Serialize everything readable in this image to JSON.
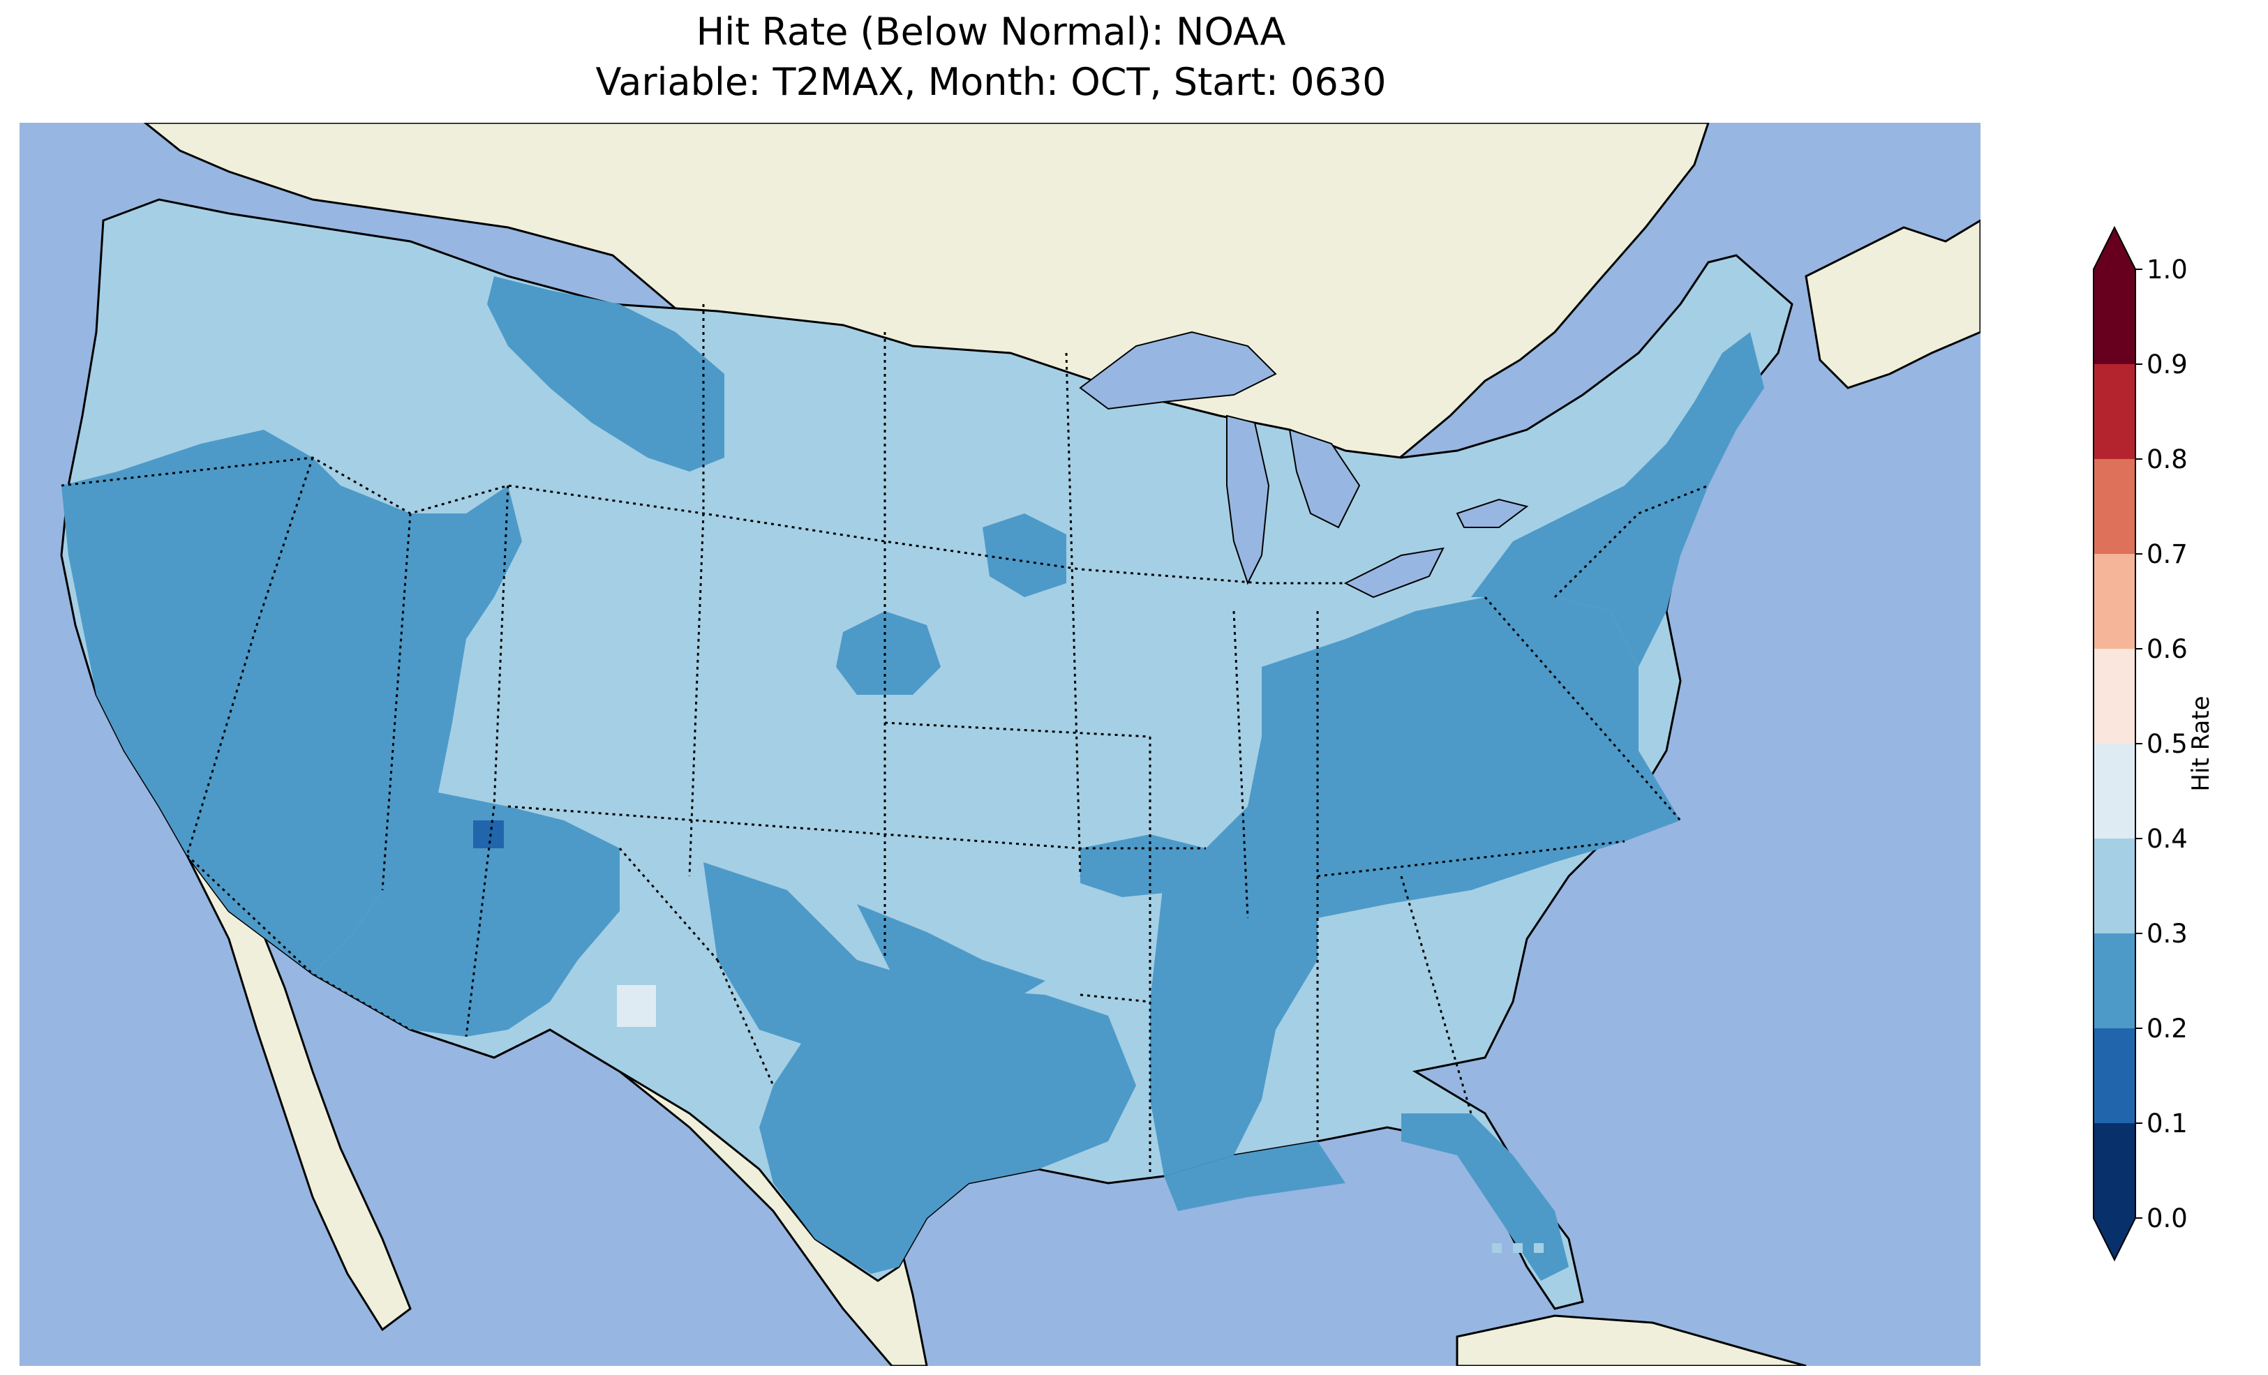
{
  "title": {
    "line1": "Hit Rate (Below Normal): NOAA",
    "line2": "Variable: T2MAX, Month: OCT, Start: 0630"
  },
  "map": {
    "region": "Contiguous United States",
    "land_color": "#efefdb",
    "water_color": "#97b6e1",
    "coastline_color": "#000000",
    "state_border_style": "dotted"
  },
  "colorbar": {
    "label": "Hit Rate",
    "ticks": [
      "0.0",
      "0.1",
      "0.2",
      "0.3",
      "0.4",
      "0.5",
      "0.6",
      "0.7",
      "0.8",
      "0.9",
      "1.0"
    ],
    "bins": [
      {
        "from": 0.0,
        "to": 0.1,
        "color": "#08306b"
      },
      {
        "from": 0.1,
        "to": 0.2,
        "color": "#2166ac"
      },
      {
        "from": 0.2,
        "to": 0.3,
        "color": "#4d9ac9"
      },
      {
        "from": 0.3,
        "to": 0.4,
        "color": "#a5cfe4"
      },
      {
        "from": 0.4,
        "to": 0.5,
        "color": "#dfebf3"
      },
      {
        "from": 0.5,
        "to": 0.6,
        "color": "#fae6dd"
      },
      {
        "from": 0.6,
        "to": 0.7,
        "color": "#f4b598"
      },
      {
        "from": 0.7,
        "to": 0.8,
        "color": "#de715a"
      },
      {
        "from": 0.8,
        "to": 0.9,
        "color": "#b4242f"
      },
      {
        "from": 0.9,
        "to": 1.0,
        "color": "#67001f"
      }
    ],
    "extend": "both",
    "extend_low_color": "#08306b",
    "extend_high_color": "#67001f"
  },
  "field_regions": [
    {
      "name": "conus-base",
      "value_bin": "0.3-0.4"
    },
    {
      "name": "california",
      "value_bin": "0.2-0.3"
    },
    {
      "name": "nevada",
      "value_bin": "0.2-0.3"
    },
    {
      "name": "utah-west",
      "value_bin": "0.2-0.3"
    },
    {
      "name": "arizona",
      "value_bin": "0.2-0.3"
    },
    {
      "name": "new-mexico-west",
      "value_bin": "0.2-0.3"
    },
    {
      "name": "montana-central",
      "value_bin": "0.2-0.3"
    },
    {
      "name": "texas",
      "value_bin": "0.2-0.3"
    },
    {
      "name": "lower-mississippi",
      "value_bin": "0.2-0.3"
    },
    {
      "name": "ohio-valley-appalachia",
      "value_bin": "0.2-0.3"
    },
    {
      "name": "northeast",
      "value_bin": "0.2-0.3"
    },
    {
      "name": "florida-north",
      "value_bin": "0.2-0.3"
    },
    {
      "name": "gulf-coast",
      "value_bin": "0.2-0.3"
    },
    {
      "name": "nebraska-patch",
      "value_bin": "0.2-0.3"
    },
    {
      "name": "south-dakota-patch",
      "value_bin": "0.2-0.3"
    },
    {
      "name": "oklahoma-band",
      "value_bin": "0.2-0.3"
    },
    {
      "name": "missouri-band",
      "value_bin": "0.2-0.3"
    },
    {
      "name": "arizona-nm-spot",
      "value_bin": "0.1-0.2"
    },
    {
      "name": "west-texas-spot",
      "value_bin": "0.4-0.5"
    },
    {
      "name": "keys-spots",
      "value_bin": "0.4-0.5"
    }
  ]
}
